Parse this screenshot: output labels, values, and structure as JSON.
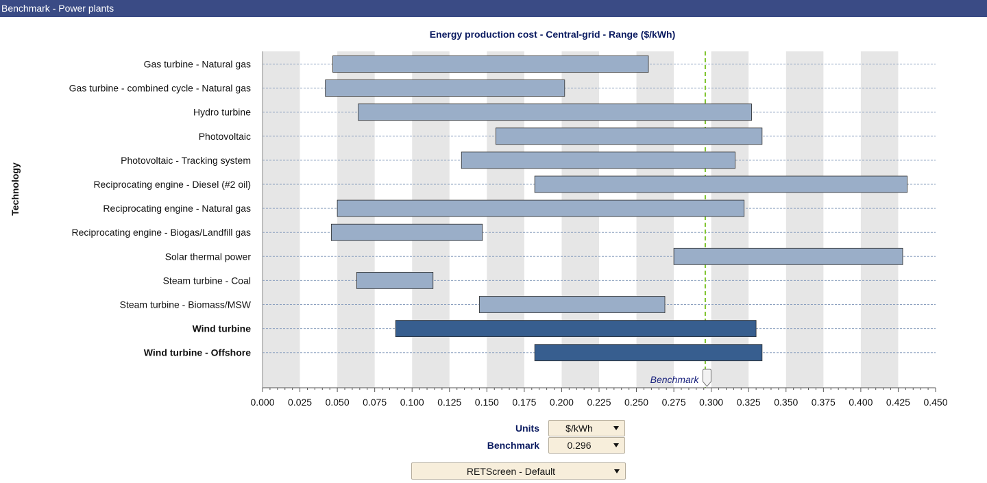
{
  "window": {
    "title": "Benchmark - Power plants"
  },
  "chart_data": {
    "type": "range-bar",
    "title": "Energy production cost - Central-grid - Range  ($/kWh)",
    "ylabel": "Technology",
    "xlabel": "",
    "xlim": [
      0,
      0.45
    ],
    "x_ticks": [
      "0.000",
      "0.025",
      "0.050",
      "0.075",
      "0.100",
      "0.125",
      "0.150",
      "0.175",
      "0.200",
      "0.225",
      "0.250",
      "0.275",
      "0.300",
      "0.325",
      "0.350",
      "0.375",
      "0.400",
      "0.425",
      "0.450"
    ],
    "benchmark": {
      "label": "Benchmark",
      "value": 0.296,
      "color": "#7cc22a"
    },
    "series": [
      {
        "name": "Gas turbine - Natural gas",
        "low": 0.047,
        "high": 0.258,
        "highlight": false
      },
      {
        "name": "Gas turbine - combined cycle - Natural gas",
        "low": 0.042,
        "high": 0.202,
        "highlight": false
      },
      {
        "name": "Hydro turbine",
        "low": 0.064,
        "high": 0.327,
        "highlight": false
      },
      {
        "name": "Photovoltaic",
        "low": 0.156,
        "high": 0.334,
        "highlight": false
      },
      {
        "name": "Photovoltaic - Tracking system",
        "low": 0.133,
        "high": 0.316,
        "highlight": false
      },
      {
        "name": "Reciprocating engine - Diesel (#2 oil)",
        "low": 0.182,
        "high": 0.431,
        "highlight": false
      },
      {
        "name": "Reciprocating engine - Natural gas",
        "low": 0.05,
        "high": 0.322,
        "highlight": false
      },
      {
        "name": "Reciprocating engine - Biogas/Landfill gas",
        "low": 0.046,
        "high": 0.147,
        "highlight": false
      },
      {
        "name": "Solar thermal power",
        "low": 0.275,
        "high": 0.428,
        "highlight": false
      },
      {
        "name": "Steam turbine - Coal",
        "low": 0.063,
        "high": 0.114,
        "highlight": false
      },
      {
        "name": "Steam turbine - Biomass/MSW",
        "low": 0.145,
        "high": 0.269,
        "highlight": false
      },
      {
        "name": "Wind turbine",
        "low": 0.089,
        "high": 0.33,
        "highlight": true
      },
      {
        "name": "Wind turbine - Offshore",
        "low": 0.182,
        "high": 0.334,
        "highlight": true
      }
    ],
    "colors": {
      "bar": "#9aaec8",
      "highlight": "#375e8f",
      "band": "#e6e6e6",
      "title": "#0a1a60"
    }
  },
  "controls": {
    "units_label": "Units",
    "units_value": "$/kWh",
    "benchmark_label": "Benchmark",
    "benchmark_value": "0.296",
    "dataset_value": "RETScreen - Default"
  }
}
